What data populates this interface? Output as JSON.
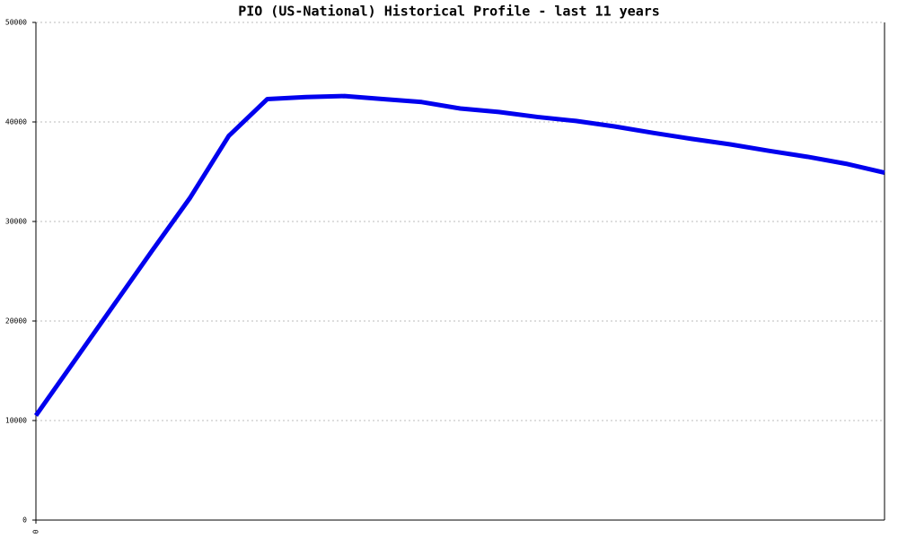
{
  "chart_data": {
    "type": "line",
    "title": "PIO (US-National) Historical Profile - last 11 years",
    "categories": [
      "0",
      null,
      null,
      null,
      null,
      null,
      null,
      null,
      null,
      null,
      null,
      null,
      null,
      null,
      null,
      null,
      null,
      null,
      null,
      null,
      null,
      null,
      null
    ],
    "series": [
      {
        "name": null,
        "color": "#0000ee",
        "values": [
          10500,
          16000,
          21500,
          27000,
          32400,
          38600,
          42300,
          42500,
          42600,
          42300,
          42000,
          41350,
          41000,
          40500,
          40100,
          39550,
          38900,
          38300,
          37750,
          37100,
          36500,
          35800,
          34900
        ]
      }
    ],
    "ylim": [
      0,
      50000
    ],
    "yticks": [
      0,
      10000,
      20000,
      30000,
      40000,
      50000
    ],
    "grid": true
  }
}
